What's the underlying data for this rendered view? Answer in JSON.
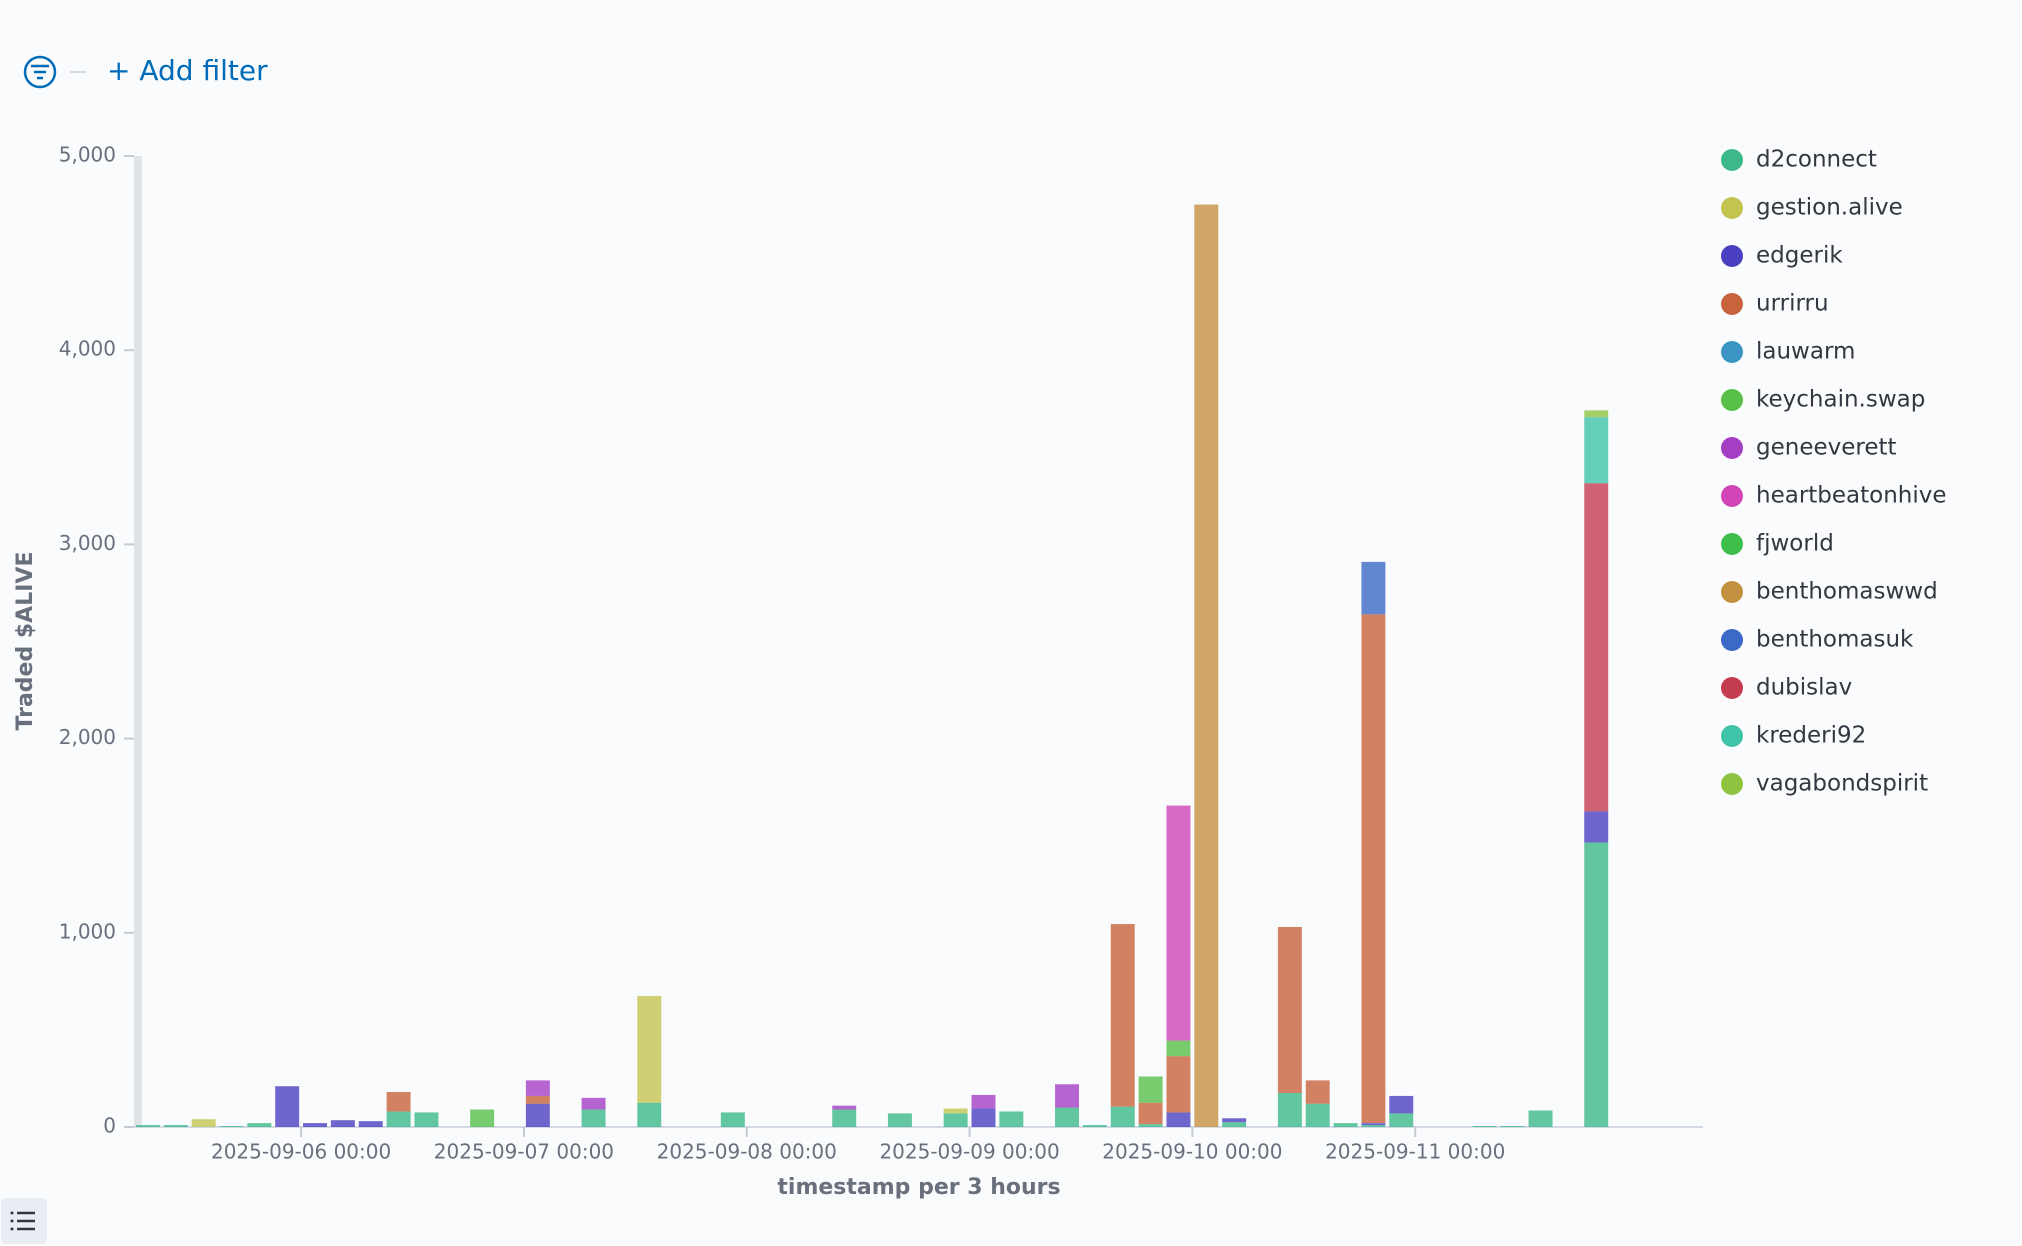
{
  "filter_bar": {
    "add_filter": "+ Add filter"
  },
  "chart_data": {
    "type": "stacked-bar",
    "x_label": "timestamp per 3 hours",
    "y_label": "Traded $ALIVE",
    "x": [
      "2025-09-05 06:00",
      "2025-09-05 09:00",
      "2025-09-05 12:00",
      "2025-09-05 15:00",
      "2025-09-05 18:00",
      "2025-09-05 21:00",
      "2025-09-06 00:00",
      "2025-09-06 03:00",
      "2025-09-06 06:00",
      "2025-09-06 09:00",
      "2025-09-06 12:00",
      "2025-09-06 18:00",
      "2025-09-07 00:00",
      "2025-09-07 06:00",
      "2025-09-07 12:00",
      "2025-09-07 21:00",
      "2025-09-08 09:00",
      "2025-09-08 15:00",
      "2025-09-08 21:00",
      "2025-09-09 00:00",
      "2025-09-09 03:00",
      "2025-09-09 09:00",
      "2025-09-09 12:00",
      "2025-09-09 15:00",
      "2025-09-09 18:00",
      "2025-09-09 21:00",
      "2025-09-10 00:00",
      "2025-09-10 03:00",
      "2025-09-10 09:00",
      "2025-09-10 12:00",
      "2025-09-10 15:00",
      "2025-09-10 18:00",
      "2025-09-10 21:00",
      "2025-09-11 06:00",
      "2025-09-11 09:00",
      "2025-09-11 12:00",
      "2025-09-11 18:00"
    ],
    "xlim": [
      "2025-09-05 06:00",
      "2025-09-12 07:00"
    ],
    "xticks": [
      "2025-09-06 00:00",
      "2025-09-07 00:00",
      "2025-09-08 00:00",
      "2025-09-09 00:00",
      "2025-09-10 00:00",
      "2025-09-11 00:00"
    ],
    "ylim": [
      0,
      5000
    ],
    "yticks": [
      0,
      {
        "value": 1000,
        "label": "1,000"
      },
      {
        "value": 2000,
        "label": "2,000"
      },
      {
        "value": 3000,
        "label": "3,000"
      },
      {
        "value": 4000,
        "label": "4,000"
      },
      {
        "value": 5000,
        "label": "5,000"
      }
    ],
    "legend": "right",
    "series": [
      {
        "name": "d2connect",
        "color": "#3cb98a",
        "values": [
          10,
          10,
          null,
          5,
          20,
          null,
          null,
          null,
          null,
          80,
          75,
          null,
          null,
          90,
          125,
          75,
          90,
          70,
          70,
          null,
          80,
          100,
          10,
          105,
          15,
          null,
          null,
          25,
          175,
          120,
          20,
          10,
          70,
          5,
          5,
          85,
          1465
        ]
      },
      {
        "name": "gestion.alive",
        "color": "#c4c450",
        "values": [
          null,
          null,
          40,
          null,
          null,
          null,
          null,
          null,
          null,
          null,
          null,
          null,
          null,
          null,
          550,
          null,
          null,
          null,
          25,
          null,
          null,
          null,
          null,
          null,
          null,
          null,
          null,
          null,
          null,
          null,
          null,
          null,
          null,
          null,
          null,
          null,
          null
        ]
      },
      {
        "name": "edgerik",
        "color": "#4b40c0",
        "values": [
          null,
          null,
          null,
          null,
          null,
          210,
          20,
          35,
          30,
          null,
          null,
          null,
          120,
          null,
          null,
          null,
          null,
          null,
          null,
          95,
          null,
          null,
          null,
          null,
          null,
          75,
          null,
          20,
          null,
          null,
          null,
          10,
          90,
          null,
          null,
          null,
          160
        ]
      },
      {
        "name": "urrirru",
        "color": "#c8643c",
        "values": [
          null,
          null,
          null,
          null,
          null,
          null,
          null,
          null,
          null,
          100,
          null,
          null,
          40,
          null,
          null,
          null,
          null,
          null,
          null,
          null,
          null,
          null,
          null,
          940,
          110,
          290,
          null,
          null,
          855,
          120,
          null,
          2620,
          null,
          null,
          null,
          null,
          null
        ]
      },
      {
        "name": "lauwarm",
        "color": "#3b95c4",
        "values": [
          null,
          null,
          null,
          null,
          null,
          null,
          null,
          null,
          null,
          null,
          null,
          null,
          null,
          null,
          null,
          null,
          null,
          null,
          null,
          null,
          null,
          null,
          null,
          null,
          null,
          null,
          null,
          null,
          null,
          null,
          null,
          null,
          null,
          null,
          null,
          null,
          null
        ]
      },
      {
        "name": "keychain.swap",
        "color": "#58c048",
        "values": [
          null,
          null,
          null,
          null,
          null,
          null,
          null,
          null,
          null,
          null,
          null,
          90,
          null,
          null,
          null,
          null,
          null,
          null,
          null,
          null,
          null,
          null,
          null,
          null,
          135,
          80,
          null,
          null,
          null,
          null,
          null,
          null,
          null,
          null,
          null,
          null,
          null
        ]
      },
      {
        "name": "geneeverett",
        "color": "#a43fc4",
        "values": [
          null,
          null,
          null,
          null,
          null,
          null,
          null,
          null,
          null,
          null,
          null,
          null,
          80,
          60,
          null,
          null,
          20,
          null,
          null,
          70,
          null,
          120,
          null,
          null,
          null,
          null,
          null,
          null,
          null,
          null,
          null,
          null,
          null,
          null,
          null,
          null,
          null
        ]
      },
      {
        "name": "heartbeatonhive",
        "color": "#d046b8",
        "values": [
          null,
          null,
          null,
          null,
          null,
          null,
          null,
          null,
          null,
          null,
          null,
          null,
          null,
          null,
          null,
          null,
          null,
          null,
          null,
          null,
          null,
          null,
          null,
          null,
          null,
          1210,
          null,
          null,
          null,
          null,
          null,
          null,
          null,
          null,
          null,
          null,
          null
        ]
      },
      {
        "name": "fjworld",
        "color": "#3fbf4a",
        "values": [
          null,
          null,
          null,
          null,
          null,
          null,
          null,
          null,
          null,
          null,
          null,
          null,
          null,
          null,
          null,
          null,
          null,
          null,
          null,
          null,
          null,
          null,
          null,
          null,
          null,
          null,
          null,
          null,
          null,
          null,
          null,
          null,
          null,
          null,
          null,
          null,
          null
        ]
      },
      {
        "name": "benthomaswwd",
        "color": "#c49140",
        "values": [
          null,
          null,
          null,
          null,
          null,
          null,
          null,
          null,
          null,
          null,
          null,
          null,
          null,
          null,
          null,
          null,
          null,
          null,
          null,
          null,
          null,
          null,
          null,
          null,
          null,
          null,
          4750,
          null,
          null,
          null,
          null,
          null,
          null,
          null,
          null,
          null,
          null
        ]
      },
      {
        "name": "benthomasuk",
        "color": "#3a6ac4",
        "values": [
          null,
          null,
          null,
          null,
          null,
          null,
          null,
          null,
          null,
          null,
          null,
          null,
          null,
          null,
          null,
          null,
          null,
          null,
          null,
          null,
          null,
          null,
          null,
          null,
          null,
          null,
          null,
          null,
          null,
          null,
          null,
          270,
          null,
          null,
          null,
          null,
          null
        ]
      },
      {
        "name": "dubislav",
        "color": "#c43c50",
        "values": [
          null,
          null,
          null,
          null,
          null,
          null,
          null,
          null,
          null,
          null,
          null,
          null,
          null,
          null,
          null,
          null,
          null,
          null,
          null,
          null,
          null,
          null,
          null,
          null,
          null,
          null,
          null,
          null,
          null,
          null,
          null,
          null,
          null,
          null,
          null,
          null,
          1690
        ]
      },
      {
        "name": "krederi92",
        "color": "#40c4a8",
        "values": [
          null,
          null,
          null,
          null,
          null,
          null,
          null,
          null,
          null,
          null,
          null,
          null,
          null,
          null,
          null,
          null,
          null,
          null,
          null,
          null,
          null,
          null,
          null,
          null,
          null,
          null,
          null,
          null,
          null,
          null,
          null,
          null,
          null,
          null,
          null,
          null,
          340
        ]
      },
      {
        "name": "vagabondspirit",
        "color": "#8ec440",
        "values": [
          null,
          null,
          null,
          null,
          null,
          null,
          null,
          null,
          null,
          null,
          null,
          null,
          null,
          null,
          null,
          null,
          null,
          null,
          null,
          null,
          null,
          null,
          null,
          null,
          null,
          null,
          null,
          null,
          null,
          null,
          null,
          null,
          null,
          null,
          null,
          null,
          35
        ]
      }
    ]
  }
}
